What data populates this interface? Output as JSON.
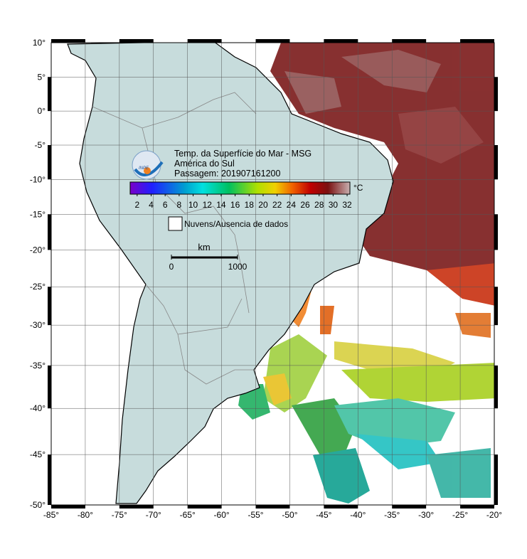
{
  "map": {
    "title": "Temp. da Superfície do Mar - MSG",
    "region": "América do Sul",
    "pass": "Passagem: 201907161200",
    "logo_text": "INPE",
    "colorbar": {
      "unit": "°C",
      "range": [
        1,
        32.4
      ],
      "ticks": [
        2,
        4,
        6,
        8,
        10,
        12,
        14,
        16,
        18,
        20,
        22,
        24,
        26,
        28,
        30,
        32
      ]
    },
    "legend": "Nuvens/Ausencia de dados",
    "scale_bar": {
      "unit": "km",
      "ticks": [
        0,
        1000
      ]
    },
    "xlim": [
      -85,
      -20
    ],
    "ylim": [
      -50,
      10
    ],
    "xticks": [
      {
        "value": -85,
        "label": "-85°"
      },
      {
        "value": -80,
        "label": "-80°"
      },
      {
        "value": -75,
        "label": "-75°"
      },
      {
        "value": -70,
        "label": "-70°"
      },
      {
        "value": -65,
        "label": "-65°"
      },
      {
        "value": -60,
        "label": "-60°"
      },
      {
        "value": -55,
        "label": "-55°"
      },
      {
        "value": -50,
        "label": "-50°"
      },
      {
        "value": -45,
        "label": "-45°"
      },
      {
        "value": -40,
        "label": "-40°"
      },
      {
        "value": -35,
        "label": "-35°"
      },
      {
        "value": -30,
        "label": "-30°"
      },
      {
        "value": -25,
        "label": "-25°"
      },
      {
        "value": -20,
        "label": "-20°"
      }
    ],
    "yticks": [
      {
        "value": 10,
        "label": "10°"
      },
      {
        "value": 5,
        "label": "5°"
      },
      {
        "value": 0,
        "label": "0°"
      },
      {
        "value": -5,
        "label": "-5°"
      },
      {
        "value": -10,
        "label": "-10°"
      },
      {
        "value": -15,
        "label": "-15°"
      },
      {
        "value": -20,
        "label": "-20°"
      },
      {
        "value": -25,
        "label": "-25°"
      },
      {
        "value": -30,
        "label": "-30°"
      },
      {
        "value": -35,
        "label": "-35°"
      },
      {
        "value": -40,
        "label": "-40°"
      },
      {
        "value": -45,
        "label": "-45°"
      },
      {
        "value": -50,
        "label": "-50°"
      }
    ]
  }
}
